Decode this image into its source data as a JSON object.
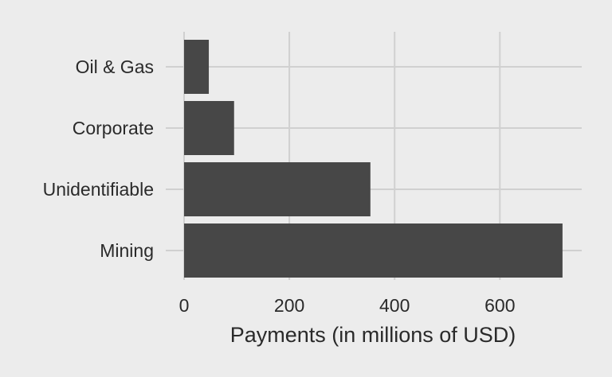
{
  "chart_data": {
    "type": "bar",
    "orientation": "horizontal",
    "categories": [
      "Oil & Gas",
      "Corporate",
      "Unidentifiable",
      "Mining"
    ],
    "values": [
      47,
      95,
      354,
      719
    ],
    "title": "",
    "xlabel": "Payments (in millions of USD)",
    "ylabel": "",
    "xlim": [
      0,
      755
    ],
    "xticks": [
      0,
      200,
      400,
      600
    ],
    "grid": true,
    "bar_color": "#474747",
    "grid_color": "#d0d0d0",
    "background_color": "#ececec",
    "text_color": "#2a2a2a"
  }
}
